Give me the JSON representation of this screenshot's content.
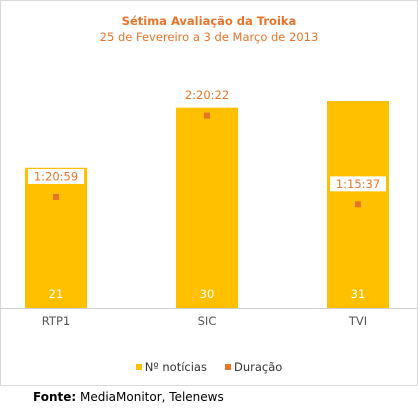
{
  "chart_data": {
    "type": "bar",
    "title": "Sétima Avaliação da Troika",
    "subtitle": "25 de Fevereiro a 3 de Março de 2013",
    "categories": [
      "RTP1",
      "SIC",
      "TVI"
    ],
    "series": [
      {
        "name": "Nº notícias",
        "type": "bar",
        "values": [
          21,
          30,
          31
        ],
        "labels": [
          "21",
          "30",
          "31"
        ],
        "color": "#ffc000"
      },
      {
        "name": "Duração",
        "type": "scatter",
        "values": [
          80.98,
          140.37,
          75.62
        ],
        "labels": [
          "1:20:59",
          "2:20:22",
          "1:15:37"
        ],
        "color": "#e8742a"
      }
    ],
    "ylim": [
      0,
      31
    ],
    "y2lim": [
      0,
      151
    ],
    "grid": false,
    "legend": "bottom"
  },
  "footer": {
    "label": "Fonte:",
    "text": " MediaMonitor, Telenews"
  }
}
